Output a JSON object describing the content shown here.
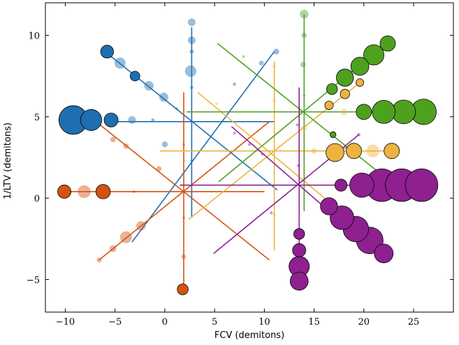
{
  "chart_data": {
    "type": "scatter",
    "xlabel": "FCV (demitons)",
    "ylabel": "1/LTV (demitons)",
    "xlim": [
      -12,
      29
    ],
    "ylim": [
      -7,
      12
    ],
    "xticks": [
      -10,
      -5,
      0,
      5,
      10,
      15,
      20,
      25
    ],
    "yticks": [
      -5,
      0,
      5,
      10
    ],
    "xtick_labels": [
      "−10",
      "−5",
      "0",
      "5",
      "10",
      "15",
      "20",
      "25"
    ],
    "ytick_labels": [
      "−5",
      "0",
      "5",
      "10"
    ],
    "grid": false,
    "legend": "none",
    "colors": {
      "blue": "#1f6eb0",
      "orange": "#d3530f",
      "yellow": "#ecb43f",
      "green": "#4ea11f",
      "purple": "#8e2090"
    },
    "groups": [
      {
        "color": "blue",
        "center": [
          2.7,
          4.7
        ],
        "spokes": [
          {
            "from": [
              -6,
              4.7
            ],
            "to": [
              11,
              4.7
            ]
          },
          {
            "from": [
              2.7,
              10.5
            ],
            "to": [
              2.7,
              -1.2
            ]
          },
          {
            "from": [
              -6,
              9
            ],
            "to": [
              11.3,
              0.5
            ]
          },
          {
            "from": [
              -3.3,
              -2.7
            ],
            "to": [
              11,
              9
            ]
          }
        ],
        "points": [
          {
            "x": -9.2,
            "y": 4.8,
            "s": 14,
            "o": 1
          },
          {
            "x": -7.4,
            "y": 4.8,
            "s": 7.5,
            "o": 1
          },
          {
            "x": -5.4,
            "y": 4.8,
            "s": 3.3,
            "o": 1
          },
          {
            "x": -3.3,
            "y": 4.8,
            "s": 1,
            "o": 0.45
          },
          {
            "x": -1.2,
            "y": 4.8,
            "s": 0.2,
            "o": 0.45
          },
          {
            "x": -5.8,
            "y": 9,
            "s": 2.8,
            "o": 1
          },
          {
            "x": -4.5,
            "y": 8.3,
            "s": 2.1,
            "o": 0.45
          },
          {
            "x": -3.0,
            "y": 7.5,
            "s": 1.6,
            "o": 1
          },
          {
            "x": -1.6,
            "y": 6.9,
            "s": 1.5,
            "o": 0.45
          },
          {
            "x": -0.1,
            "y": 6.2,
            "s": 1.4,
            "o": 0.45
          },
          {
            "x": 1.2,
            "y": 5.5,
            "s": 0.1,
            "o": 0.45
          },
          {
            "x": 2.7,
            "y": 10.8,
            "s": 1.0,
            "o": 0.45
          },
          {
            "x": 2.7,
            "y": 9.7,
            "s": 1.0,
            "o": 0.45
          },
          {
            "x": 2.7,
            "y": 9.0,
            "s": 0.3,
            "o": 0.45
          },
          {
            "x": 2.6,
            "y": 7.8,
            "s": 2.2,
            "o": 0.45
          },
          {
            "x": 2.7,
            "y": 6.8,
            "s": 0.2,
            "o": 0.45
          },
          {
            "x": 2.7,
            "y": 2.3,
            "s": 0.1,
            "o": 0.45
          },
          {
            "x": 0.0,
            "y": 3.3,
            "s": 0.6,
            "o": 0.45
          },
          {
            "x": 7.0,
            "y": 7.0,
            "s": 0.2,
            "o": 0.45
          },
          {
            "x": 9.7,
            "y": 8.3,
            "s": 0.4,
            "o": 0.45
          },
          {
            "x": 11.2,
            "y": 9.0,
            "s": 0.6,
            "o": 0.45
          }
        ]
      },
      {
        "color": "orange",
        "center": [
          1.9,
          0.4
        ],
        "spokes": [
          {
            "from": [
              -10,
              0.4
            ],
            "to": [
              10,
              0.4
            ]
          },
          {
            "from": [
              1.9,
              6.5
            ],
            "to": [
              1.9,
              -5.5
            ]
          },
          {
            "from": [
              -6.5,
              4.5
            ],
            "to": [
              10.5,
              -3.8
            ]
          },
          {
            "from": [
              -6.6,
              -3.8
            ],
            "to": [
              10.5,
              4.7
            ]
          }
        ],
        "points": [
          {
            "x": -10.1,
            "y": 0.4,
            "s": 3.0,
            "o": 1
          },
          {
            "x": -8.1,
            "y": 0.4,
            "s": 2.8,
            "o": 0.45
          },
          {
            "x": -6.2,
            "y": 0.4,
            "s": 3.5,
            "o": 1
          },
          {
            "x": -3.1,
            "y": 0.4,
            "s": 0.1,
            "o": 0.45
          },
          {
            "x": -5.2,
            "y": 3.6,
            "s": 0.5,
            "o": 0.45
          },
          {
            "x": -3.9,
            "y": 3.2,
            "s": 0.5,
            "o": 0.45
          },
          {
            "x": -0.6,
            "y": 1.8,
            "s": 0.5,
            "o": 0.45
          },
          {
            "x": 1.8,
            "y": -5.6,
            "s": 2.0,
            "o": 1
          },
          {
            "x": 1.9,
            "y": -3.6,
            "s": 0.4,
            "o": 0.45
          },
          {
            "x": 1.9,
            "y": -1.2,
            "s": 0.05,
            "o": 0.45
          },
          {
            "x": 1.9,
            "y": 3.3,
            "s": 0.1,
            "o": 0.45
          },
          {
            "x": -6.6,
            "y": -3.8,
            "s": 0.4,
            "o": 0.45
          },
          {
            "x": -5.2,
            "y": -3.1,
            "s": 0.8,
            "o": 0.45
          },
          {
            "x": -3.9,
            "y": -2.4,
            "s": 2.4,
            "o": 0.45
          },
          {
            "x": -2.4,
            "y": -1.7,
            "s": 1.5,
            "o": 0.45
          }
        ]
      },
      {
        "color": "yellow",
        "center": [
          11,
          2.9
        ],
        "spokes": [
          {
            "from": [
              -0.5,
              2.9
            ],
            "to": [
              22.5,
              2.9
            ]
          },
          {
            "from": [
              11,
              8.4
            ],
            "to": [
              11,
              -3.2
            ]
          },
          {
            "from": [
              3.3,
              6.5
            ],
            "to": [
              19,
              -1.5
            ]
          },
          {
            "from": [
              2.4,
              -1.3
            ],
            "to": [
              19.6,
              7.1
            ]
          }
        ],
        "points": [
          {
            "x": 17.1,
            "y": 2.8,
            "s": 5.5,
            "o": 1
          },
          {
            "x": 19.0,
            "y": 2.9,
            "s": 4.0,
            "o": 1
          },
          {
            "x": 20.9,
            "y": 2.9,
            "s": 2.8,
            "o": 0.45
          },
          {
            "x": 22.8,
            "y": 2.9,
            "s": 4.0,
            "o": 1
          },
          {
            "x": 15.0,
            "y": 2.9,
            "s": 0.5,
            "o": 0.45
          },
          {
            "x": 19.6,
            "y": 7.1,
            "s": 1.0,
            "o": 1
          },
          {
            "x": 18.1,
            "y": 6.4,
            "s": 1.5,
            "o": 1
          },
          {
            "x": 16.5,
            "y": 5.7,
            "s": 1.2,
            "o": 1
          },
          {
            "x": 18.0,
            "y": 5.3,
            "s": 0.6,
            "o": 0.45
          },
          {
            "x": 14.0,
            "y": 4.3,
            "s": 0.5,
            "o": 0.45
          },
          {
            "x": 11,
            "y": 8.1,
            "s": 0.05,
            "o": 0.45
          },
          {
            "x": 11,
            "y": 6.0,
            "s": 0.05,
            "o": 0.45
          },
          {
            "x": 11,
            "y": -1.0,
            "s": 0.05,
            "o": 0.45
          },
          {
            "x": 5.2,
            "y": 5.8,
            "s": 0.05,
            "o": 0.45
          },
          {
            "x": 8.8,
            "y": 1.7,
            "s": 0.05,
            "o": 0.45
          }
        ]
      },
      {
        "color": "green",
        "center": [
          14,
          5.3
        ],
        "spokes": [
          {
            "from": [
              2.2,
              5.3
            ],
            "to": [
              25.7,
              5.3
            ]
          },
          {
            "from": [
              14,
              11.3
            ],
            "to": [
              14,
              -0.8
            ]
          },
          {
            "from": [
              5.3,
              9.5
            ],
            "to": [
              22.5,
              1.1
            ]
          },
          {
            "from": [
              5.4,
              1.0
            ],
            "to": [
              22.2,
              9.5
            ]
          }
        ],
        "points": [
          {
            "x": 14.0,
            "y": 11.3,
            "s": 1.3,
            "o": 0.45
          },
          {
            "x": 14.0,
            "y": 10.0,
            "s": 0.5,
            "o": 0.45
          },
          {
            "x": 13.9,
            "y": 8.2,
            "s": 0.5,
            "o": 0.45
          },
          {
            "x": 14.0,
            "y": 6.3,
            "s": 0.1,
            "o": 0.45
          },
          {
            "x": 20.0,
            "y": 5.3,
            "s": 4.0,
            "o": 1
          },
          {
            "x": 22.0,
            "y": 5.3,
            "s": 9.0,
            "o": 1
          },
          {
            "x": 24.0,
            "y": 5.3,
            "s": 9.5,
            "o": 1
          },
          {
            "x": 26.0,
            "y": 5.3,
            "s": 11.0,
            "o": 1
          },
          {
            "x": 16.8,
            "y": 6.7,
            "s": 2.0,
            "o": 1
          },
          {
            "x": 18.1,
            "y": 7.4,
            "s": 5.0,
            "o": 1
          },
          {
            "x": 19.6,
            "y": 8.1,
            "s": 5.5,
            "o": 1
          },
          {
            "x": 21.0,
            "y": 8.8,
            "s": 7.0,
            "o": 1
          },
          {
            "x": 22.4,
            "y": 9.5,
            "s": 4.0,
            "o": 1
          },
          {
            "x": 16.9,
            "y": 3.9,
            "s": 0.6,
            "o": 1
          },
          {
            "x": 7.9,
            "y": 8.7,
            "s": 0.05,
            "o": 0.45
          }
        ]
      },
      {
        "color": "purple",
        "center": [
          13.5,
          0.8
        ],
        "spokes": [
          {
            "from": [
              1.5,
              0.8
            ],
            "to": [
              26,
              0.8
            ]
          },
          {
            "from": [
              13.5,
              6.8
            ],
            "to": [
              13.5,
              -4.8
            ]
          },
          {
            "from": [
              6.7,
              4.4
            ],
            "to": [
              21.8,
              -3.6
            ]
          },
          {
            "from": [
              4.9,
              -3.4
            ],
            "to": [
              19.5,
              3.9
            ]
          }
        ],
        "points": [
          {
            "x": 17.7,
            "y": 0.8,
            "s": 2.5,
            "o": 1
          },
          {
            "x": 19.8,
            "y": 0.8,
            "s": 10.0,
            "o": 1
          },
          {
            "x": 21.8,
            "y": 0.8,
            "s": 18.0,
            "o": 1
          },
          {
            "x": 23.8,
            "y": 0.8,
            "s": 18.0,
            "o": 1
          },
          {
            "x": 25.8,
            "y": 0.8,
            "s": 18.0,
            "o": 1
          },
          {
            "x": 16.5,
            "y": -0.5,
            "s": 5.0,
            "o": 1
          },
          {
            "x": 17.8,
            "y": -1.2,
            "s": 9.5,
            "o": 1
          },
          {
            "x": 19.2,
            "y": -1.9,
            "s": 11.0,
            "o": 1
          },
          {
            "x": 20.6,
            "y": -2.6,
            "s": 12.0,
            "o": 1
          },
          {
            "x": 22.0,
            "y": -3.4,
            "s": 6.0,
            "o": 1
          },
          {
            "x": 13.5,
            "y": -2.2,
            "s": 2.0,
            "o": 1
          },
          {
            "x": 13.5,
            "y": -3.2,
            "s": 3.0,
            "o": 1
          },
          {
            "x": 13.5,
            "y": -4.2,
            "s": 7.0,
            "o": 1
          },
          {
            "x": 13.5,
            "y": -5.1,
            "s": 5.5,
            "o": 1
          },
          {
            "x": 13.3,
            "y": 4.5,
            "s": 0.05,
            "o": 0.45
          },
          {
            "x": 13.4,
            "y": 2.0,
            "s": 0.05,
            "o": 0.45
          },
          {
            "x": 8.5,
            "y": 3.3,
            "s": 0.1,
            "o": 0.45
          },
          {
            "x": 9.8,
            "y": 2.7,
            "s": 0.1,
            "o": 0.45
          },
          {
            "x": 7.0,
            "y": 4.0,
            "s": 0.1,
            "o": 0.45
          },
          {
            "x": 16.6,
            "y": 2.4,
            "s": 0.1,
            "o": 0.45
          },
          {
            "x": 18.1,
            "y": 3.1,
            "s": 0.15,
            "o": 0.45
          },
          {
            "x": 19.5,
            "y": 3.9,
            "s": 0.2,
            "o": 0.45
          },
          {
            "x": 10.7,
            "y": -0.9,
            "s": 0.05,
            "o": 0.45
          }
        ]
      }
    ]
  }
}
